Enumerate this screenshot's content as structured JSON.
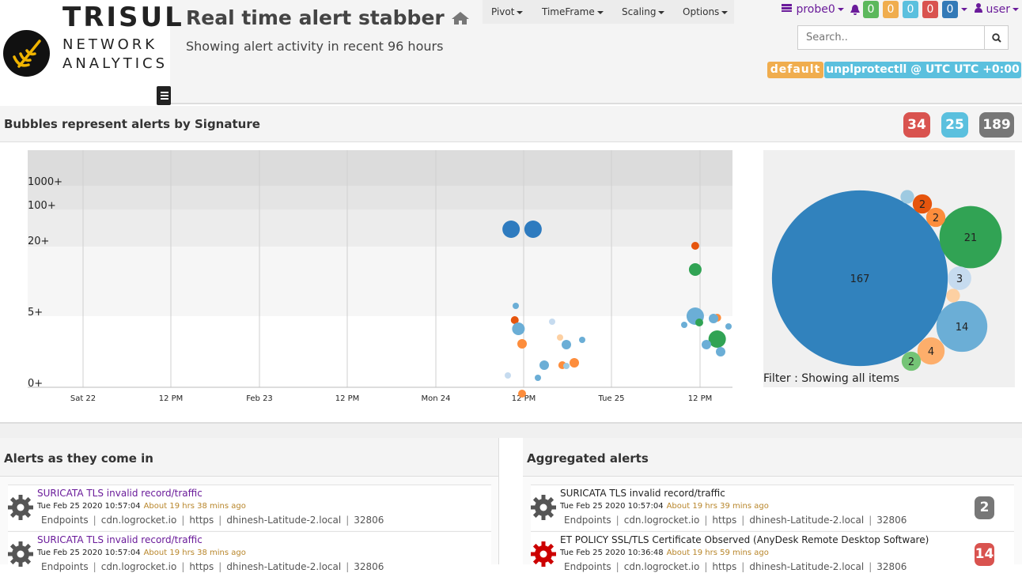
{
  "brand": {
    "name": "TRISUL",
    "line1": "NETWORK",
    "line2": "ANALYTICS"
  },
  "page": {
    "title": "Real time alert stabber",
    "subtitle": "Showing alert activity in recent 96 hours"
  },
  "menu": [
    "Pivot",
    "TimeFrame",
    "Scaling",
    "Options"
  ],
  "probe": {
    "label": "probe0"
  },
  "alert_counts": [
    {
      "value": "0",
      "color": "#5cb85c"
    },
    {
      "value": "0",
      "color": "#f0ad4e"
    },
    {
      "value": "0",
      "color": "#5bc0de"
    },
    {
      "value": "0",
      "color": "#d9534f"
    },
    {
      "value": "0",
      "color": "#337ab7"
    }
  ],
  "user": {
    "label": "user"
  },
  "search": {
    "placeholder": "Search.."
  },
  "context": {
    "name": "default",
    "tz": "unplprotectll @ UTC UTC +0:00"
  },
  "bubbles_section": {
    "title": "Bubbles represent alerts by Signature",
    "counts": [
      {
        "value": "34",
        "color": "#d9534f"
      },
      {
        "value": "25",
        "color": "#5bc0de"
      },
      {
        "value": "189",
        "color": "#777777"
      }
    ]
  },
  "chart_data": [
    {
      "type": "scatter",
      "x_ticks": [
        "Sat 22",
        "12 PM",
        "Feb 23",
        "12 PM",
        "Mon 24",
        "12 PM",
        "Tue 25",
        "12 PM"
      ],
      "y_bands": [
        "1000+",
        "100+",
        "20+",
        "5+",
        "0+"
      ],
      "points": [
        {
          "x": "Mon 24 10:30",
          "y": "20+",
          "color": "#2e7bbf",
          "size": "large"
        },
        {
          "x": "Mon 24 13:30",
          "y": "20+",
          "color": "#2e7bbf",
          "size": "large"
        },
        {
          "x": "Tue 25 11:40",
          "y": "20+",
          "color": "#e6550d",
          "size": "small"
        },
        {
          "x": "Tue 25 11:40",
          "y": "20+",
          "color": "#31a354",
          "size": "medium"
        },
        {
          "x": "Tue 25 11:40",
          "y": "5+",
          "color": "#6baed6",
          "size": "large"
        },
        {
          "x": "Tue 25 14:40",
          "y": "5+",
          "color": "#31a354",
          "size": "large"
        },
        {
          "x": "Tue 25 14:40",
          "y": "5+",
          "color": "#fd8d3c",
          "size": "small"
        },
        {
          "x": "Mon 24 11:00",
          "y": "5+",
          "color": "#e6550d",
          "size": "small"
        },
        {
          "x": "Mon 24 11:30",
          "y": "5+",
          "color": "#6baed6",
          "size": "medium"
        },
        {
          "x": "Mon 24 10:30",
          "y": "0+",
          "color": "#6baed6",
          "size": "medium"
        },
        {
          "x": "Mon 24 17:30",
          "y": "0+",
          "color": "#fd8d3c",
          "size": "small"
        },
        {
          "x": "Mon 24 12:00",
          "y": "0+",
          "color": "#fd8d3c",
          "size": "small"
        },
        {
          "x": "Tue 25 11:40",
          "y": "0+",
          "color": "#74c476",
          "size": "small"
        },
        {
          "x": "Tue 25 11:40",
          "y": "0+",
          "color": "#fdd0a2",
          "size": "small"
        }
      ]
    },
    {
      "type": "bubble",
      "title": "",
      "items": [
        {
          "value": 167,
          "color": "#3182bd"
        },
        {
          "value": 21,
          "color": "#31a354"
        },
        {
          "value": 14,
          "color": "#6baed6"
        },
        {
          "value": 4,
          "color": "#fdae6b"
        },
        {
          "value": 3,
          "color": "#c6dbef"
        },
        {
          "value": 2,
          "color": "#e6550d"
        },
        {
          "value": 2,
          "color": "#fd8d3c"
        },
        {
          "value": 2,
          "color": "#74c476"
        },
        {
          "value": 1,
          "color": "#9ecae1"
        },
        {
          "value": 1,
          "color": "#fdd0a2"
        }
      ]
    }
  ],
  "filter_text": "Filter : Showing all items",
  "live": {
    "title": "Alerts as they come in",
    "items": [
      {
        "title": "SURICATA TLS invalid record/traffic",
        "time": "Tue Feb 25 2020 10:57:04",
        "ago": "About 19 hrs 38 mins ago",
        "flow": [
          "Endpoints",
          "cdn.logrocket.io",
          "https",
          "dhinesh-Latitude-2.local",
          "32806"
        ]
      },
      {
        "title": "SURICATA TLS invalid record/traffic",
        "time": "Tue Feb 25 2020 10:57:04",
        "ago": "About 19 hrs 38 mins ago",
        "flow": [
          "Endpoints",
          "cdn.logrocket.io",
          "https",
          "dhinesh-Latitude-2.local",
          "32806"
        ]
      }
    ]
  },
  "aggregated": {
    "title": "Aggregated alerts",
    "items": [
      {
        "title": "SURICATA TLS invalid record/traffic",
        "time": "Tue Feb 25 2020 10:57:04",
        "ago": "About 19 hrs 39 mins ago",
        "flow": [
          "Endpoints",
          "cdn.logrocket.io",
          "https",
          "dhinesh-Latitude-2.local",
          "32806"
        ],
        "count": "2",
        "count_color": "#777777"
      },
      {
        "title": "ET POLICY SSL/TLS Certificate Observed (AnyDesk Remote Desktop Software)",
        "time": "Tue Feb 25 2020 10:36:48",
        "ago": "About 19 hrs 59 mins ago",
        "flow": [
          "Endpoints",
          "cdn.logrocket.io",
          "https",
          "dhinesh-Latitude-2.local",
          "32806"
        ],
        "count": "14",
        "count_color": "#d9534f"
      }
    ]
  }
}
